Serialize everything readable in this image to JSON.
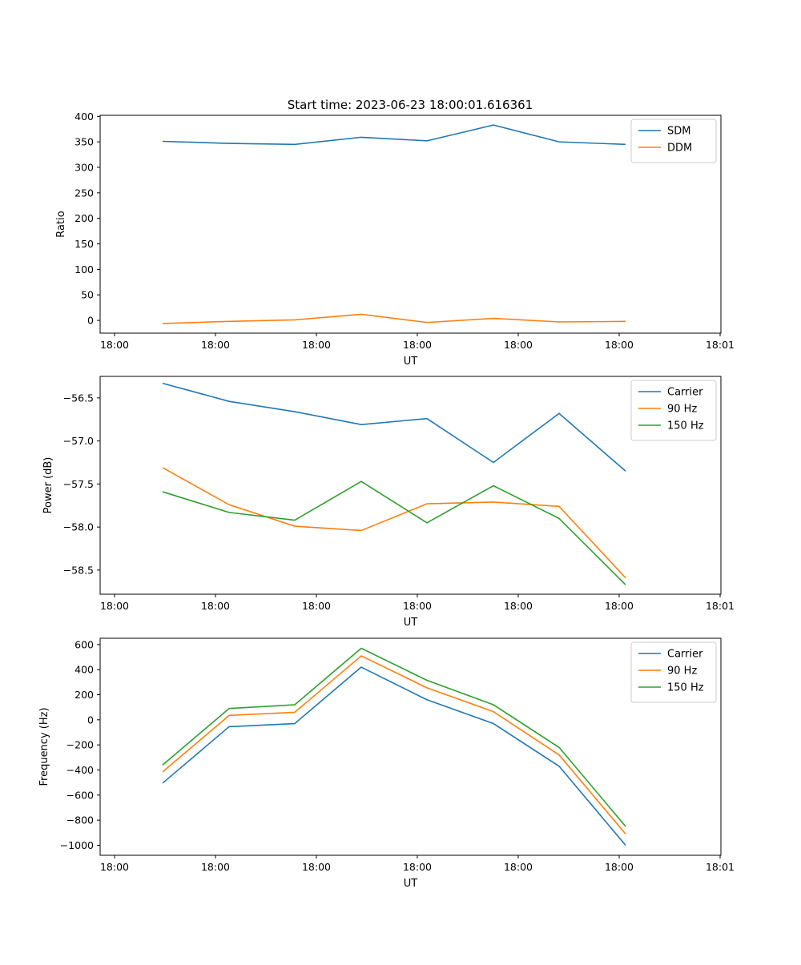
{
  "figure_title": "Start time: 2023-06-23 18:00:01.616361",
  "colors": {
    "carrier": "#1f77b4",
    "ninety": "#ff7f0e",
    "onefifty": "#2ca02c",
    "sdm": "#1f77b4",
    "ddm": "#ff7f0e"
  },
  "chart_data": [
    {
      "type": "line",
      "xlabel": "UT",
      "ylabel": "Ratio",
      "xticks": [
        "18:00",
        "18:00",
        "18:00",
        "18:00",
        "18:00",
        "18:00",
        "18:01"
      ],
      "ylim": [
        -25,
        402
      ],
      "yticks": [
        0,
        50,
        100,
        150,
        200,
        250,
        300,
        350,
        400
      ],
      "ytick_labels": [
        "0",
        "50",
        "100",
        "150",
        "200",
        "250",
        "300",
        "350",
        "400"
      ],
      "legend_position": "upper right",
      "series": [
        {
          "name": "SDM",
          "color": "#1f77b4",
          "values": [
            351,
            347,
            345,
            359,
            352,
            383,
            350,
            345
          ]
        },
        {
          "name": "DDM",
          "color": "#ff7f0e",
          "values": [
            -6,
            -2,
            1,
            12,
            -4,
            4,
            -3,
            -2
          ]
        }
      ]
    },
    {
      "type": "line",
      "xlabel": "UT",
      "ylabel": "Power (dB)",
      "xticks": [
        "18:00",
        "18:00",
        "18:00",
        "18:00",
        "18:00",
        "18:00",
        "18:01"
      ],
      "ylim": [
        -58.78,
        -56.25
      ],
      "yticks": [
        -58.5,
        -58.0,
        -57.5,
        -57.0,
        -56.5
      ],
      "ytick_labels": [
        "−58.5",
        "−58.0",
        "−57.5",
        "−57.0",
        "−56.5"
      ],
      "legend_position": "upper right",
      "series": [
        {
          "name": "Carrier",
          "color": "#1f77b4",
          "values": [
            -56.33,
            -56.54,
            -56.66,
            -56.81,
            -56.74,
            -57.25,
            -56.68,
            -57.35
          ]
        },
        {
          "name": "90 Hz",
          "color": "#ff7f0e",
          "values": [
            -57.31,
            -57.74,
            -57.99,
            -58.04,
            -57.73,
            -57.71,
            -57.76,
            -58.59
          ]
        },
        {
          "name": "150 Hz",
          "color": "#2ca02c",
          "values": [
            -57.59,
            -57.83,
            -57.92,
            -57.47,
            -57.95,
            -57.52,
            -57.9,
            -58.67
          ]
        }
      ]
    },
    {
      "type": "line",
      "xlabel": "UT",
      "ylabel": "Frequency (Hz)",
      "xticks": [
        "18:00",
        "18:00",
        "18:00",
        "18:00",
        "18:00",
        "18:00",
        "18:01"
      ],
      "ylim": [
        -1080,
        650
      ],
      "yticks": [
        -1000,
        -800,
        -600,
        -400,
        -200,
        0,
        200,
        400,
        600
      ],
      "ytick_labels": [
        "−1000",
        "−800",
        "−600",
        "−400",
        "−200",
        "0",
        "200",
        "400",
        "600"
      ],
      "legend_position": "upper right",
      "series": [
        {
          "name": "Carrier",
          "color": "#1f77b4",
          "values": [
            -505,
            -55,
            -30,
            420,
            160,
            -30,
            -370,
            -1000
          ]
        },
        {
          "name": "90 Hz",
          "color": "#ff7f0e",
          "values": [
            -415,
            35,
            60,
            510,
            255,
            65,
            -280,
            -910
          ]
        },
        {
          "name": "150 Hz",
          "color": "#2ca02c",
          "values": [
            -360,
            90,
            120,
            570,
            315,
            120,
            -220,
            -850
          ]
        }
      ]
    }
  ]
}
